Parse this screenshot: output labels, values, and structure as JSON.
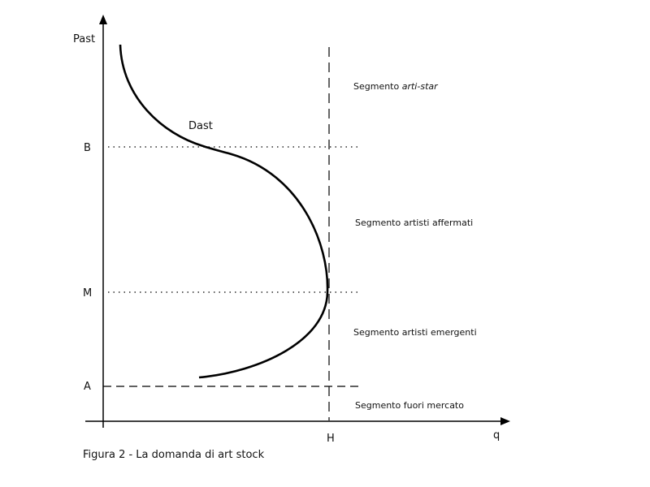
{
  "axes": {
    "y_label": "Past",
    "x_label": "q"
  },
  "levels": {
    "top": "B",
    "middle": "M",
    "bottom": "A"
  },
  "quantity_label": "H",
  "curve_label": "Dast",
  "segments": [
    {
      "text": "Segmento",
      "emphasis": "arti-star"
    },
    {
      "text": "Segmento artisti affermati"
    },
    {
      "text": "Segmento artisti emergenti"
    },
    {
      "text": "Segmento fuori mercato"
    }
  ],
  "caption": "Figura 2 - La domanda di art stock"
}
